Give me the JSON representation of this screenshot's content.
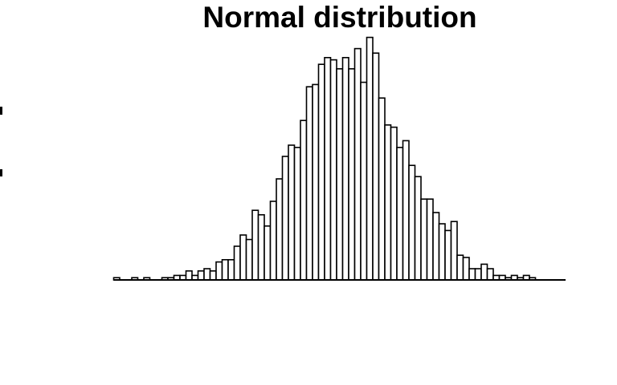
{
  "chart_data": {
    "type": "bar",
    "title": "Normal distribution",
    "xlabel": "",
    "ylabel": "",
    "grid": false,
    "bar_fill": "#ffffff",
    "bar_stroke": "#000000",
    "bin_count": 75,
    "ylim": [
      0,
      100
    ],
    "values": [
      1,
      0,
      0,
      1,
      0,
      1,
      0,
      0,
      1,
      1,
      2,
      2,
      4,
      2,
      4,
      5,
      4,
      8,
      9,
      9,
      15,
      20,
      18,
      31,
      29,
      24,
      35,
      45,
      55,
      60,
      59,
      71,
      86,
      87,
      96,
      99,
      98,
      94,
      99,
      94,
      103,
      88,
      108,
      101,
      81,
      69,
      68,
      59,
      62,
      51,
      46,
      36,
      36,
      30,
      25,
      22,
      26,
      11,
      10,
      5,
      5,
      7,
      5,
      2,
      2,
      1,
      2,
      1,
      2,
      1,
      0,
      0,
      0,
      0,
      0
    ]
  }
}
